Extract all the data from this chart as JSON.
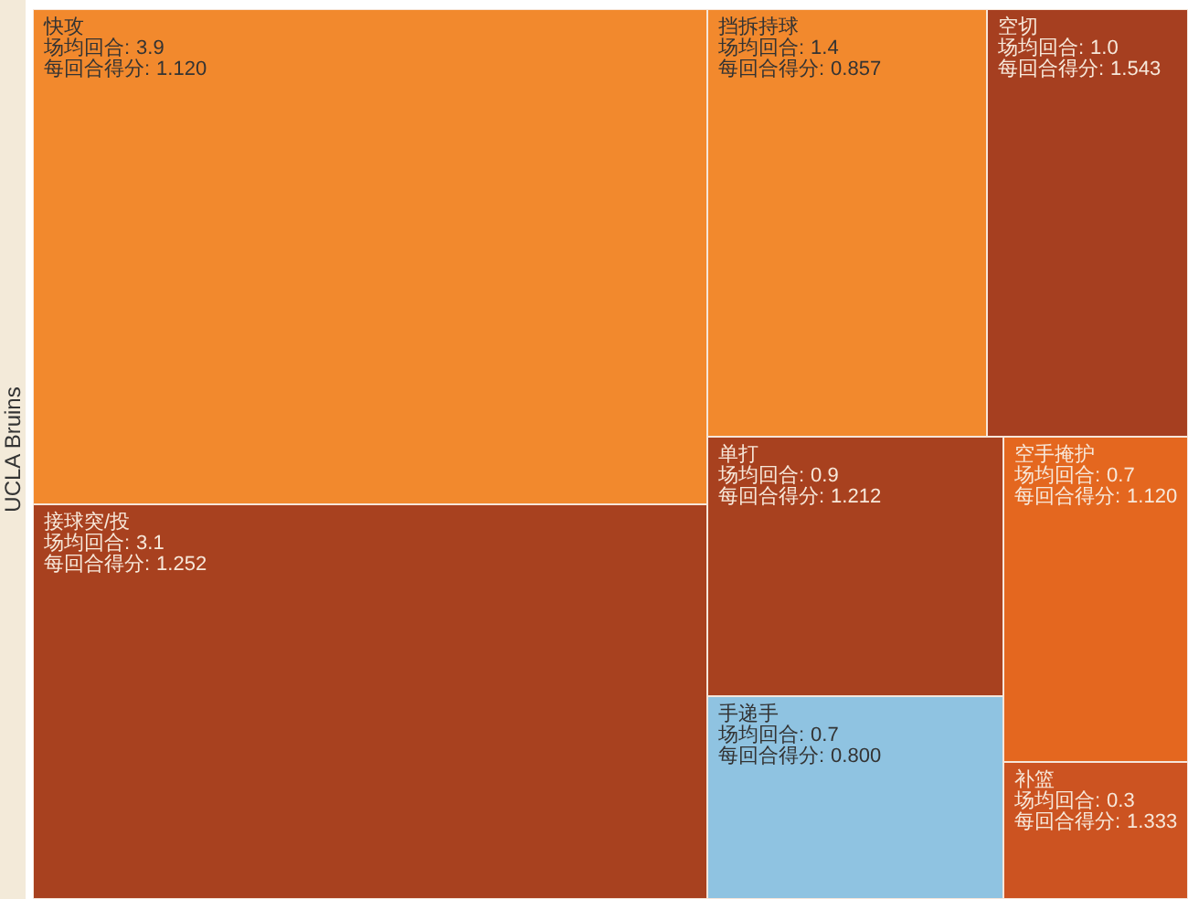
{
  "chart_data": {
    "type": "other",
    "ylabel": "UCLA Bruins",
    "categories": [
      "快攻",
      "接球突/投",
      "挡拆持球",
      "空切",
      "单打",
      "手递手",
      "空手掩护",
      "补篮"
    ],
    "series": [
      {
        "name": "场均回合:",
        "values": [
          3.9,
          3.1,
          1.4,
          1.0,
          0.9,
          0.7,
          0.7,
          0.3
        ],
        "value_labels": [
          "3.9",
          "3.1",
          "1.4",
          "1.0",
          "0.9",
          "0.7",
          "0.7",
          "0.3"
        ],
        "colors": [
          "#f2892d",
          "#a8411f",
          "#f2892d",
          "#a63f20",
          "#a8411f",
          "#8fc3e1",
          "#e4671f",
          "#cc5321"
        ]
      },
      {
        "name": "每回合得分:",
        "values": [
          1.12,
          1.252,
          0.857,
          1.543,
          1.212,
          0.8,
          1.12,
          1.333
        ],
        "value_labels": [
          "1.120",
          "1.252",
          "0.857",
          "1.543",
          "1.212",
          "0.800",
          "1.120",
          "1.333"
        ]
      }
    ]
  }
}
